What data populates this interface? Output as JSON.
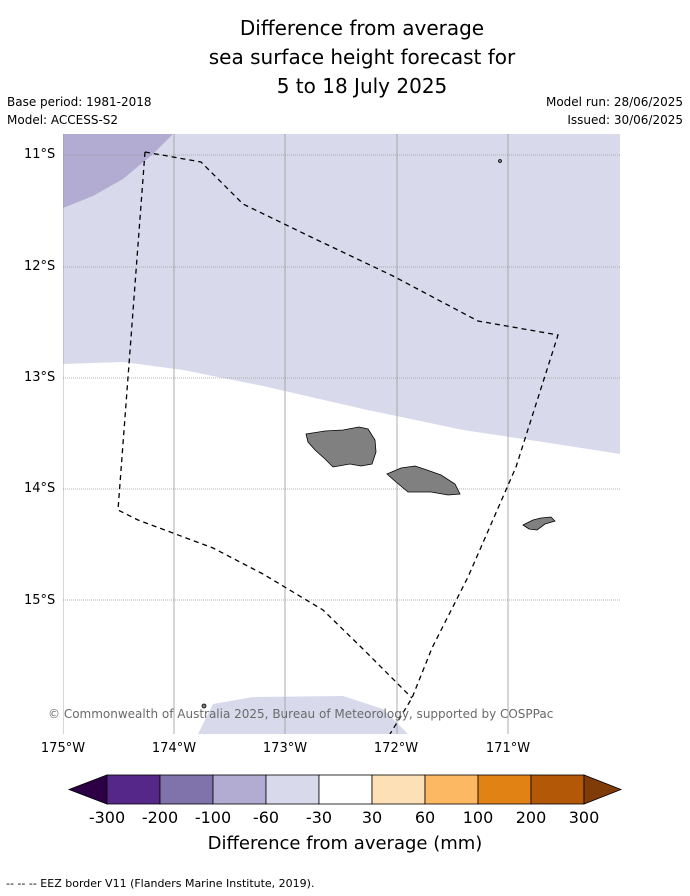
{
  "title": {
    "line1": "Difference from average",
    "line2": "sea surface height forecast for",
    "line3": "5 to 18 July 2025"
  },
  "meta": {
    "base_period": "Base period: 1981-2018",
    "model": "Model: ACCESS-S2",
    "model_run": "Model run: 28/06/2025",
    "issued": "Issued: 30/06/2025"
  },
  "map": {
    "latitude_labels": [
      "11°S",
      "12°S",
      "13°S",
      "14°S",
      "15°S"
    ],
    "longitude_labels": [
      "175°W",
      "174°W",
      "173°W",
      "172°W",
      "171°W"
    ],
    "copyright": "© Commonwealth of Australia 2025, Bureau of Meteorology, supported by COSPPac"
  },
  "colorbar": {
    "label": "Difference from average (mm)",
    "ticks": [
      "-300",
      "-200",
      "-100",
      "-60",
      "-30",
      "30",
      "60",
      "100",
      "200",
      "300"
    ],
    "colors": [
      "#2d0046",
      "#542788",
      "#8073ac",
      "#b2abd2",
      "#d8daeb",
      "#ffffff",
      "#fee0b6",
      "#fdb863",
      "#e08214",
      "#b35806",
      "#7f3b08"
    ]
  },
  "footer": {
    "legend_text": "-- -- -- EEZ border V11 (Flanders Marine Institute, 2019)."
  }
}
